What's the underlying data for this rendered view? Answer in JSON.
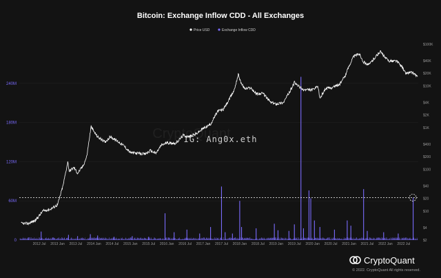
{
  "title": "Bitcoin: Exchange Inflow CDD - All Exchanges",
  "legend": [
    {
      "label": "Price USD",
      "color": "#ffffff"
    },
    {
      "label": "Exchange Inflow CDD",
      "color": "#7b6cff"
    }
  ],
  "watermark": "CryptoQuant",
  "overlay_text": "IG: Ang0x.eth",
  "brand": "CryptoQuant",
  "copyright": "© 2022. CryptoQuant All rights reserved.",
  "colors": {
    "background": "#131313",
    "price": "#ffffff",
    "cdd": "#7b6cff",
    "grid": "#2a2a2a",
    "threshold": "#ffffff"
  },
  "icons": {
    "brand_logo": "cryptoquant-logo-icon",
    "highlight_marker": "dashed-circle-icon"
  },
  "chart_data": {
    "type": "line",
    "title": "Bitcoin: Exchange Inflow CDD - All Exchanges",
    "x_range": [
      2011.95,
      2022.9
    ],
    "x_ticks": [
      {
        "label": "2012 Jul",
        "t": 2012.5
      },
      {
        "label": "2013 Jan",
        "t": 2013.0
      },
      {
        "label": "2013 Jul",
        "t": 2013.5
      },
      {
        "label": "2014 Jan",
        "t": 2014.0
      },
      {
        "label": "2014 Jul",
        "t": 2014.5
      },
      {
        "label": "2015 Jan",
        "t": 2015.0
      },
      {
        "label": "2015 Jul",
        "t": 2015.5
      },
      {
        "label": "2016 Jan",
        "t": 2016.0
      },
      {
        "label": "2016 Jul",
        "t": 2016.5
      },
      {
        "label": "2017 Jan",
        "t": 2017.0
      },
      {
        "label": "2017 Jul",
        "t": 2017.5
      },
      {
        "label": "2018 Jan",
        "t": 2018.0
      },
      {
        "label": "2018 Jul",
        "t": 2018.5
      },
      {
        "label": "2019 Jan",
        "t": 2019.0
      },
      {
        "label": "2019 Jul",
        "t": 2019.5
      },
      {
        "label": "2020 Jan",
        "t": 2020.0
      },
      {
        "label": "2020 Jul",
        "t": 2020.5
      },
      {
        "label": "2021 Jan",
        "t": 2021.0
      },
      {
        "label": "2021 Jul",
        "t": 2021.5
      },
      {
        "label": "2022 Jan",
        "t": 2022.0
      },
      {
        "label": "2022 Jul",
        "t": 2022.5
      }
    ],
    "left_axis": {
      "series": "Exchange Inflow CDD",
      "range": [
        0,
        300000000
      ],
      "ticks": [
        {
          "label": "0",
          "v": 0
        },
        {
          "label": "60M",
          "v": 60000000
        },
        {
          "label": "120M",
          "v": 120000000
        },
        {
          "label": "180M",
          "v": 180000000
        },
        {
          "label": "240M",
          "v": 240000000
        }
      ]
    },
    "right_axis": {
      "series": "Price USD",
      "scale": "log",
      "range": [
        2,
        100000
      ],
      "ticks": [
        {
          "label": "$2",
          "v": 2
        },
        {
          "label": "$4",
          "v": 4
        },
        {
          "label": "$10",
          "v": 10
        },
        {
          "label": "$20",
          "v": 20
        },
        {
          "label": "$40",
          "v": 40
        },
        {
          "label": "$100",
          "v": 100
        },
        {
          "label": "$200",
          "v": 200
        },
        {
          "label": "$400",
          "v": 400
        },
        {
          "label": "$1K",
          "v": 1000
        },
        {
          "label": "$2K",
          "v": 2000
        },
        {
          "label": "$4K",
          "v": 4000
        },
        {
          "label": "$10K",
          "v": 10000
        },
        {
          "label": "$20K",
          "v": 20000
        },
        {
          "label": "$40K",
          "v": 40000
        },
        {
          "label": "$100K",
          "v": 100000
        }
      ]
    },
    "threshold_line": {
      "axis": "left",
      "value": 65000000
    },
    "highlight_point": {
      "t": 2022.75,
      "value": 65000000
    },
    "series": [
      {
        "name": "Price USD",
        "axis": "right",
        "points": [
          [
            2012.0,
            5
          ],
          [
            2012.2,
            5
          ],
          [
            2012.4,
            6
          ],
          [
            2012.6,
            10
          ],
          [
            2012.8,
            11
          ],
          [
            2013.0,
            14
          ],
          [
            2013.15,
            40
          ],
          [
            2013.28,
            150
          ],
          [
            2013.32,
            90
          ],
          [
            2013.45,
            110
          ],
          [
            2013.55,
            80
          ],
          [
            2013.7,
            120
          ],
          [
            2013.8,
            200
          ],
          [
            2013.92,
            1050
          ],
          [
            2014.0,
            800
          ],
          [
            2014.1,
            600
          ],
          [
            2014.3,
            450
          ],
          [
            2014.45,
            600
          ],
          [
            2014.6,
            500
          ],
          [
            2014.8,
            380
          ],
          [
            2015.0,
            250
          ],
          [
            2015.2,
            240
          ],
          [
            2015.4,
            230
          ],
          [
            2015.55,
            280
          ],
          [
            2015.7,
            240
          ],
          [
            2015.85,
            380
          ],
          [
            2016.0,
            430
          ],
          [
            2016.25,
            420
          ],
          [
            2016.45,
            650
          ],
          [
            2016.6,
            600
          ],
          [
            2016.8,
            700
          ],
          [
            2017.0,
            950
          ],
          [
            2017.2,
            1200
          ],
          [
            2017.4,
            2500
          ],
          [
            2017.55,
            2700
          ],
          [
            2017.7,
            4500
          ],
          [
            2017.85,
            8000
          ],
          [
            2017.96,
            19000
          ],
          [
            2018.05,
            11000
          ],
          [
            2018.15,
            8500
          ],
          [
            2018.3,
            9000
          ],
          [
            2018.45,
            6500
          ],
          [
            2018.65,
            6500
          ],
          [
            2018.85,
            4000
          ],
          [
            2019.0,
            3700
          ],
          [
            2019.2,
            4000
          ],
          [
            2019.4,
            8000
          ],
          [
            2019.5,
            12000
          ],
          [
            2019.6,
            10000
          ],
          [
            2019.75,
            8000
          ],
          [
            2020.0,
            8000
          ],
          [
            2020.15,
            9500
          ],
          [
            2020.2,
            5000
          ],
          [
            2020.35,
            8500
          ],
          [
            2020.55,
            9200
          ],
          [
            2020.75,
            11000
          ],
          [
            2020.9,
            18000
          ],
          [
            2021.0,
            30000
          ],
          [
            2021.12,
            50000
          ],
          [
            2021.28,
            60000
          ],
          [
            2021.4,
            37000
          ],
          [
            2021.55,
            32000
          ],
          [
            2021.7,
            47000
          ],
          [
            2021.86,
            67000
          ],
          [
            2022.0,
            46000
          ],
          [
            2022.12,
            39000
          ],
          [
            2022.3,
            40000
          ],
          [
            2022.45,
            29000
          ],
          [
            2022.55,
            20000
          ],
          [
            2022.7,
            21000
          ],
          [
            2022.8,
            19500
          ],
          [
            2022.88,
            16500
          ]
        ]
      },
      {
        "name": "Exchange Inflow CDD",
        "axis": "left",
        "baseline": 2000000,
        "spikes": [
          [
            2012.2,
            4000000
          ],
          [
            2012.55,
            13000000
          ],
          [
            2013.3,
            8000000
          ],
          [
            2013.55,
            6000000
          ],
          [
            2013.9,
            9000000
          ],
          [
            2014.1,
            7000000
          ],
          [
            2014.55,
            5000000
          ],
          [
            2015.05,
            6000000
          ],
          [
            2015.5,
            5000000
          ],
          [
            2015.95,
            41000000
          ],
          [
            2016.2,
            12000000
          ],
          [
            2016.55,
            16000000
          ],
          [
            2016.9,
            10000000
          ],
          [
            2017.2,
            20000000
          ],
          [
            2017.5,
            82000000
          ],
          [
            2017.6,
            12000000
          ],
          [
            2017.8,
            10000000
          ],
          [
            2018.0,
            60000000
          ],
          [
            2018.05,
            20000000
          ],
          [
            2018.45,
            18000000
          ],
          [
            2018.95,
            25000000
          ],
          [
            2019.05,
            15000000
          ],
          [
            2019.35,
            14000000
          ],
          [
            2019.5,
            24000000
          ],
          [
            2019.68,
            250000000
          ],
          [
            2019.75,
            18000000
          ],
          [
            2019.9,
            76000000
          ],
          [
            2019.95,
            64000000
          ],
          [
            2020.05,
            30000000
          ],
          [
            2020.2,
            20000000
          ],
          [
            2020.6,
            16000000
          ],
          [
            2020.95,
            30000000
          ],
          [
            2021.05,
            22000000
          ],
          [
            2021.4,
            78000000
          ],
          [
            2021.5,
            14000000
          ],
          [
            2021.95,
            12000000
          ],
          [
            2022.35,
            10000000
          ],
          [
            2022.76,
            65000000
          ]
        ]
      }
    ]
  }
}
